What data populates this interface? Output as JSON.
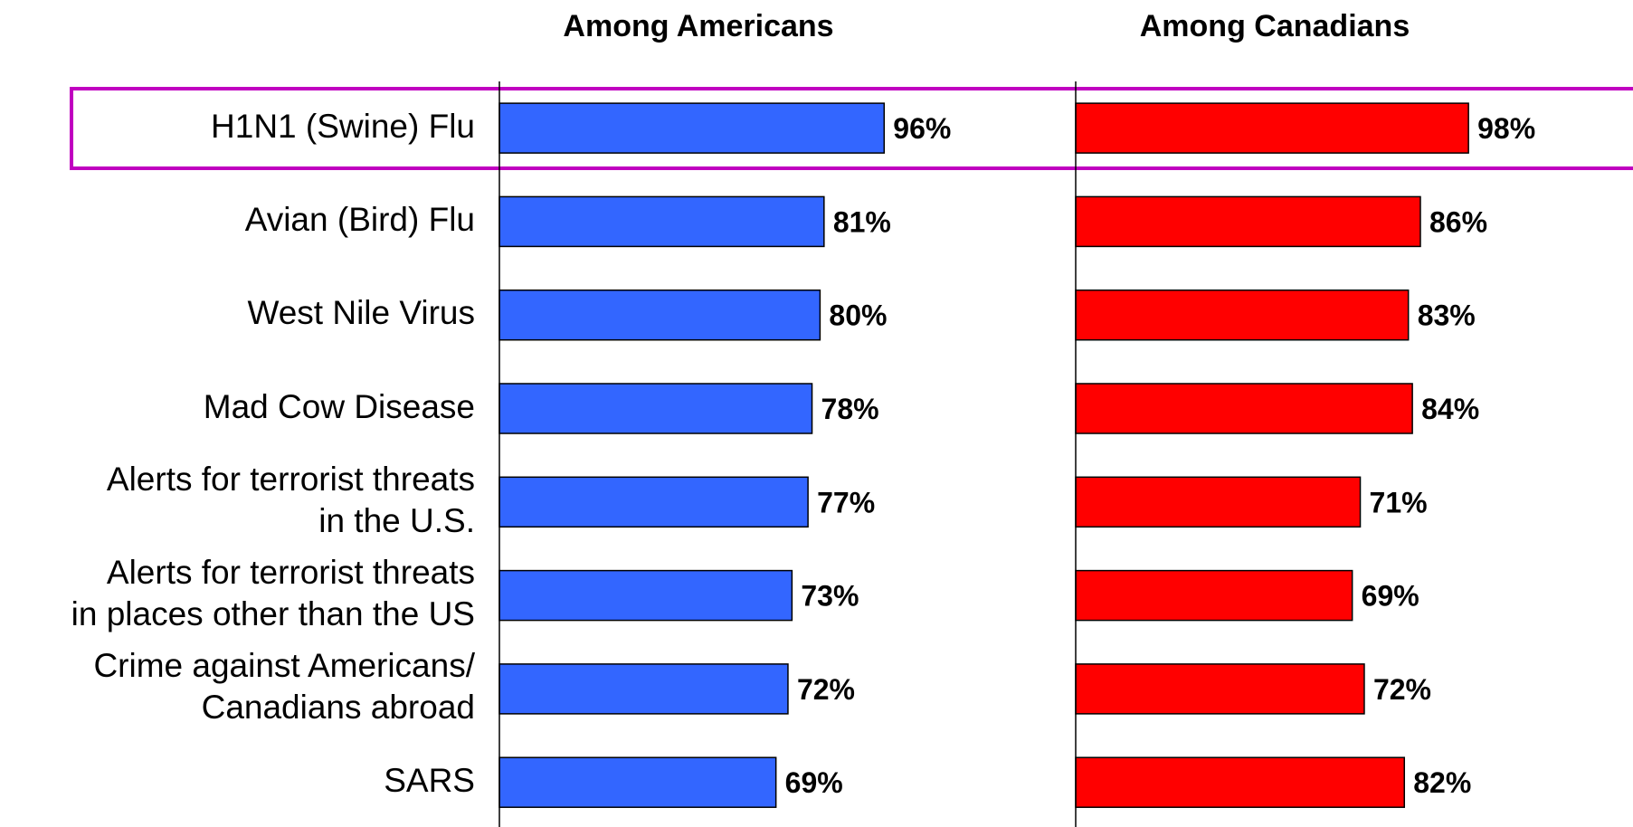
{
  "chart_data": {
    "type": "bar",
    "orientation": "horizontal",
    "categories": [
      "H1N1 (Swine) Flu",
      "Avian (Bird) Flu",
      "West Nile Virus",
      "Mad Cow Disease",
      "Alerts for terrorist threats\nin the U.S.",
      "Alerts for terrorist threats\nin places other than the US",
      "Crime against Americans/\nCanadians abroad",
      "SARS"
    ],
    "series": [
      {
        "name": "Among Americans",
        "color": "#3366ff",
        "values": [
          96,
          81,
          80,
          78,
          77,
          73,
          72,
          69
        ],
        "value_labels": [
          "96%",
          "81%",
          "80%",
          "78%",
          "77%",
          "73%",
          "72%",
          "69%"
        ]
      },
      {
        "name": "Among Canadians",
        "color": "#ff0000",
        "values": [
          98,
          86,
          83,
          84,
          71,
          69,
          72,
          82
        ],
        "value_labels": [
          "98%",
          "86%",
          "83%",
          "84%",
          "71%",
          "69%",
          "72%",
          "82%"
        ]
      }
    ],
    "xlim": [
      0,
      100
    ]
  }
}
